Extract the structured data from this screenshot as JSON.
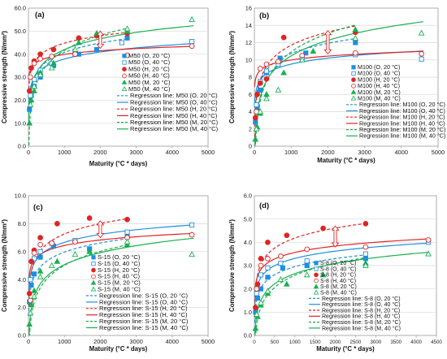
{
  "chart_data": [
    {
      "type": "scatter",
      "panel_label": "(a)",
      "xlabel": "Maturity (°C * days)",
      "ylabel": "Compressive strength (N/mm²)",
      "xlim": [
        0,
        5000
      ],
      "ylim": [
        0,
        60
      ],
      "xticks": [
        "0",
        "1000",
        "2000",
        "3000",
        "4000",
        "5000"
      ],
      "yticks": [
        "0.0",
        "10.0",
        "20.0",
        "30.0",
        "40.0",
        "50.0",
        "60.0"
      ],
      "grid": true,
      "legend_position": "right",
      "colors": {
        "O": "#1e8fe0",
        "H": "#e02424",
        "M": "#18b050"
      },
      "series": [
        {
          "name": "M50 (O, 20 °C)",
          "color": "#1e8fe0",
          "marker": "square",
          "filled": true,
          "x": [
            28,
            80,
            160,
            330,
            700,
            1400,
            1900,
            2750
          ],
          "y": [
            16,
            22,
            26,
            30,
            35,
            40,
            42,
            47
          ]
        },
        {
          "name": "M50 (O, 40 °C)",
          "color": "#1e8fe0",
          "marker": "square",
          "filled": false,
          "x": [
            55,
            160,
            330,
            650,
            1300,
            2600,
            4550
          ],
          "y": [
            22,
            29,
            33,
            36,
            40,
            45,
            45.5
          ]
        },
        {
          "name": "M50 (H, 20 °C)",
          "color": "#e02424",
          "marker": "circle",
          "filled": true,
          "x": [
            28,
            80,
            160,
            330,
            700,
            1400,
            1900,
            2750
          ],
          "y": [
            24,
            34,
            37,
            40,
            42,
            47,
            48,
            49
          ]
        },
        {
          "name": "M50 (H, 40 °C)",
          "color": "#e02424",
          "marker": "circle",
          "filled": false,
          "x": [
            55,
            160,
            330,
            650,
            1300,
            2750,
            4550
          ],
          "y": [
            30,
            36,
            38,
            39,
            40,
            39.5,
            43.5
          ]
        },
        {
          "name": "M50 (M, 20 °C)",
          "color": "#18b050",
          "marker": "triangle",
          "filled": true,
          "x": [
            28,
            80,
            160,
            330,
            700,
            1400,
            1900,
            2750
          ],
          "y": [
            10,
            20,
            24,
            32,
            36,
            45,
            49,
            50
          ]
        },
        {
          "name": "M50 (M, 40 °C)",
          "color": "#18b050",
          "marker": "triangle",
          "filled": false,
          "x": [
            55,
            160,
            330,
            650,
            1300,
            2750,
            4550
          ],
          "y": [
            18,
            26,
            31,
            34,
            42,
            51,
            55
          ]
        }
      ],
      "regression_lines": [
        {
          "name": "Regression line: M50 (O, 20 °C)",
          "color": "#1e8fe0",
          "dash": true,
          "a": 0.0,
          "b": 5.9,
          "x_end": 2750
        },
        {
          "name": "Regression line: M50 (O, 40 °C)",
          "color": "#1e8fe0",
          "dash": false,
          "a": 7.5,
          "b": 4.4,
          "x_end": 4600
        },
        {
          "name": "Regression line: M50 (H, 20 °C)",
          "color": "#e02424",
          "dash": true,
          "a": 13.0,
          "b": 4.6,
          "x_end": 2750
        },
        {
          "name": "Regression line: M50 (H, 40 °C)",
          "color": "#e02424",
          "dash": false,
          "a": 24.0,
          "b": 2.3,
          "x_end": 4600
        },
        {
          "name": "Regression line: M50 (M, 20 °C)",
          "color": "#18b050",
          "dash": true,
          "a": -24.0,
          "b": 9.5,
          "x_end": 2750
        },
        {
          "name": "Regression line: M50 (M, 40 °C)",
          "color": "#18b050",
          "dash": false,
          "a": -5.0,
          "b": 6.8,
          "x_end": 4600
        }
      ],
      "annotation_arrow": {
        "x": 2000,
        "y_from": 42.5,
        "y_to": 50
      }
    },
    {
      "type": "scatter",
      "panel_label": "(b)",
      "xlabel": "Maturity (°C * days)",
      "ylabel": "Compressive strength (N/mm²)",
      "xlim": [
        0,
        5000
      ],
      "ylim": [
        0,
        16
      ],
      "xticks": [
        "0",
        "1000",
        "2000",
        "3000",
        "4000",
        "5000"
      ],
      "yticks": [
        "0",
        "2",
        "4",
        "6",
        "8",
        "10",
        "12",
        "14",
        "16"
      ],
      "grid": true,
      "legend_position": "right",
      "colors": {
        "O": "#1e8fe0",
        "H": "#e02424",
        "M": "#18b050"
      },
      "series": [
        {
          "name": "M100 (O, 20 °C)",
          "color": "#1e8fe0",
          "marker": "square",
          "filled": true,
          "x": [
            28,
            80,
            160,
            330,
            700,
            1400,
            2750
          ],
          "y": [
            2.8,
            4.5,
            6.5,
            8.5,
            10.2,
            10.8,
            12.0
          ]
        },
        {
          "name": "M100 (O, 40 °C)",
          "color": "#1e8fe0",
          "marker": "square",
          "filled": false,
          "x": [
            55,
            160,
            330,
            650,
            1300,
            2750,
            4550
          ],
          "y": [
            4.8,
            7.5,
            8.7,
            9.5,
            10.2,
            10.6,
            10.1
          ]
        },
        {
          "name": "M100 (H, 20 °C)",
          "color": "#e02424",
          "marker": "circle",
          "filled": true,
          "x": [
            28,
            80,
            160,
            330,
            800,
            2750
          ],
          "y": [
            3.3,
            6.0,
            7.3,
            7.8,
            12.6,
            13.2
          ]
        },
        {
          "name": "M100 (H, 40 °C)",
          "color": "#e02424",
          "marker": "circle",
          "filled": false,
          "x": [
            55,
            160,
            330,
            650,
            1300,
            2750,
            4550
          ],
          "y": [
            4.0,
            9.0,
            9.5,
            9.8,
            10.5,
            10.8,
            10.7
          ]
        },
        {
          "name": "M100 (M, 20 °C)",
          "color": "#18b050",
          "marker": "triangle",
          "filled": true,
          "x": [
            28,
            80,
            160,
            330,
            800,
            1600,
            2750
          ],
          "y": [
            0.8,
            2.2,
            3.8,
            6.0,
            8.5,
            11.0,
            13.5
          ]
        },
        {
          "name": "M100 (M, 40 °C)",
          "color": "#18b050",
          "marker": "triangle",
          "filled": false,
          "x": [
            55,
            160,
            330,
            650,
            1300,
            2750,
            4550
          ],
          "y": [
            2.0,
            4.0,
            5.5,
            6.5,
            10.0,
            12.5,
            13.1
          ]
        }
      ],
      "regression_lines": [
        {
          "name": "Regression line: M100 (O, 20 °C)",
          "color": "#1e8fe0",
          "dash": true,
          "a": -1.0,
          "b": 1.7,
          "x_end": 2750
        },
        {
          "name": "Regression line: M100 (O, 40 °C)",
          "color": "#1e8fe0",
          "dash": false,
          "a": 2.6,
          "b": 1.0,
          "x_end": 4600
        },
        {
          "name": "Regression line: M100 (H, 20 °C)",
          "color": "#e02424",
          "dash": true,
          "a": -3.5,
          "b": 2.2,
          "x_end": 2750
        },
        {
          "name": "Regression line: M100 (H, 40 °C)",
          "color": "#e02424",
          "dash": false,
          "a": 5.5,
          "b": 0.65,
          "x_end": 4600
        },
        {
          "name": "Regression line: M100 (M, 20 °C)",
          "color": "#18b050",
          "dash": true,
          "a": -10.5,
          "b": 3.1,
          "x_end": 2750
        },
        {
          "name": "Regression line: M100 (M, 40 °C)",
          "color": "#18b050",
          "dash": false,
          "a": -7.5,
          "b": 2.6,
          "x_end": 4600
        }
      ],
      "annotation_arrow": {
        "x": 2000,
        "y_from": 10.7,
        "y_to": 13.4
      }
    },
    {
      "type": "scatter",
      "panel_label": "(c)",
      "xlabel": "Maturity (°C * days)",
      "ylabel": "Compressive strength (N/mm²)",
      "xlim": [
        0,
        5000
      ],
      "ylim": [
        0,
        10
      ],
      "xticks": [
        "0",
        "1000",
        "2000",
        "3000",
        "4000",
        "5000"
      ],
      "yticks": [
        "0.0",
        "2.0",
        "4.0",
        "6.0",
        "8.0",
        "10.0"
      ],
      "grid": true,
      "legend_position": "bottom",
      "colors": {
        "O": "#1e8fe0",
        "H": "#e02424",
        "M": "#18b050"
      },
      "series": [
        {
          "name": "S-15 (O, 20 °C)",
          "color": "#1e8fe0",
          "marker": "square",
          "filled": true,
          "x": [
            28,
            80,
            160,
            330,
            700,
            1700,
            2750
          ],
          "y": [
            2.4,
            3.6,
            4.4,
            5.6,
            6.4,
            6.2,
            7.2
          ]
        },
        {
          "name": "S-15 (O, 40 °C)",
          "color": "#1e8fe0",
          "marker": "square",
          "filled": false,
          "x": [
            55,
            160,
            330,
            650,
            1300,
            2750,
            4550
          ],
          "y": [
            4.0,
            5.5,
            6.0,
            6.6,
            6.8,
            7.4,
            7.9
          ]
        },
        {
          "name": "S-15 (H, 20 °C)",
          "color": "#e02424",
          "marker": "circle",
          "filled": true,
          "x": [
            28,
            80,
            160,
            330,
            800,
            1700,
            2750
          ],
          "y": [
            3.0,
            5.3,
            6.1,
            7.0,
            8.0,
            8.4,
            8.3
          ]
        },
        {
          "name": "S-15 (H, 40 °C)",
          "color": "#e02424",
          "marker": "circle",
          "filled": false,
          "x": [
            55,
            160,
            330,
            650,
            1300,
            2750,
            4550
          ],
          "y": [
            2.5,
            5.9,
            6.5,
            6.6,
            6.7,
            7.0,
            7.2
          ]
        },
        {
          "name": "S-15 (M, 20 °C)",
          "color": "#18b050",
          "marker": "triangle",
          "filled": true,
          "x": [
            28,
            80,
            160,
            330,
            800,
            1700,
            2750
          ],
          "y": [
            0.8,
            2.2,
            3.2,
            4.6,
            5.3,
            6.0,
            6.5
          ]
        },
        {
          "name": "S-15 (M, 40 °C)",
          "color": "#18b050",
          "marker": "triangle",
          "filled": false,
          "x": [
            55,
            160,
            330,
            650,
            1300,
            2750,
            4550
          ],
          "y": [
            1.6,
            2.8,
            4.2,
            5.0,
            5.8,
            6.7,
            5.8
          ]
        }
      ],
      "regression_lines": [
        {
          "name": "Regression line: S-15 (O, 20 °C)",
          "color": "#1e8fe0",
          "dash": true,
          "a": -0.6,
          "b": 0.95,
          "x_end": 2750
        },
        {
          "name": "Regression line: S-15 (O, 40 °C)",
          "color": "#1e8fe0",
          "dash": false,
          "a": 1.0,
          "b": 0.82,
          "x_end": 4600
        },
        {
          "name": "Regression line: S-15 (H, 20 °C)",
          "color": "#e02424",
          "dash": true,
          "a": -0.2,
          "b": 1.08,
          "x_end": 2750
        },
        {
          "name": "Regression line: S-15 (H, 40 °C)",
          "color": "#e02424",
          "dash": false,
          "a": 2.5,
          "b": 0.57,
          "x_end": 4600
        },
        {
          "name": "Regression line: S-15 (M, 20 °C)",
          "color": "#18b050",
          "dash": true,
          "a": -5.0,
          "b": 1.45,
          "x_end": 2750
        },
        {
          "name": "Regression line: S-15 (M, 40 °C)",
          "color": "#18b050",
          "dash": false,
          "a": -3.5,
          "b": 1.24,
          "x_end": 4600
        }
      ],
      "annotation_arrow": {
        "x": 2000,
        "y_from": 7.0,
        "y_to": 8.2
      }
    },
    {
      "type": "scatter",
      "panel_label": "(d)",
      "xlabel": "Maturity (°C * days)",
      "ylabel": "Compressive strength (N/mm²)",
      "xlim": [
        0,
        4500
      ],
      "ylim": [
        0,
        6
      ],
      "xticks": [
        "0",
        "500",
        "1000",
        "1500",
        "2000",
        "2500",
        "3000",
        "3500",
        "4000",
        "4500"
      ],
      "yticks": [
        "0.0",
        "1.0",
        "2.0",
        "3.0",
        "4.0",
        "5.0",
        "6.0"
      ],
      "grid": true,
      "legend_position": "bottom",
      "colors": {
        "O": "#1e8fe0",
        "H": "#e02424",
        "M": "#18b050"
      },
      "series": [
        {
          "name": "S-8 (O, 20 °C)",
          "color": "#1e8fe0",
          "marker": "square",
          "filled": true,
          "x": [
            28,
            80,
            160,
            330,
            700,
            1300,
            2750
          ],
          "y": [
            1.0,
            1.6,
            2.0,
            2.5,
            2.9,
            3.0,
            3.3
          ]
        },
        {
          "name": "S-8 (O, 40 °C)",
          "color": "#1e8fe0",
          "marker": "square",
          "filled": false,
          "x": [
            55,
            160,
            330,
            650,
            1300,
            2750,
            4300
          ],
          "y": [
            1.8,
            2.6,
            2.9,
            3.1,
            3.2,
            3.5,
            4.0
          ]
        },
        {
          "name": "S-8 (H, 20 °C)",
          "color": "#e02424",
          "marker": "circle",
          "filled": true,
          "x": [
            28,
            80,
            160,
            330,
            800,
            1700,
            2750
          ],
          "y": [
            1.2,
            2.2,
            3.3,
            4.0,
            4.3,
            4.6,
            4.8
          ]
        },
        {
          "name": "S-8 (H, 40 °C)",
          "color": "#e02424",
          "marker": "circle",
          "filled": false,
          "x": [
            55,
            160,
            330,
            650,
            1300,
            2750,
            4300
          ],
          "y": [
            2.0,
            3.0,
            3.3,
            3.4,
            3.7,
            3.8,
            4.1
          ]
        },
        {
          "name": "S-8 (M, 20 °C)",
          "color": "#18b050",
          "marker": "triangle",
          "filled": true,
          "x": [
            28,
            80,
            160,
            330,
            800,
            1700,
            2750
          ],
          "y": [
            0.3,
            0.8,
            1.3,
            1.8,
            2.2,
            2.6,
            3.1
          ]
        },
        {
          "name": "S-8 (M, 40 °C)",
          "color": "#18b050",
          "marker": "triangle",
          "filled": false,
          "x": [
            55,
            160,
            330,
            650,
            1300,
            2750,
            4300
          ],
          "y": [
            0.9,
            1.4,
            1.9,
            2.4,
            2.6,
            3.0,
            3.5
          ]
        }
      ],
      "regression_lines": [
        {
          "name": "Regression line: S-8 (O, 20 °C)",
          "color": "#1e8fe0",
          "dash": true,
          "a": -0.5,
          "b": 0.5,
          "x_end": 2750
        },
        {
          "name": "Regression line: S-8 (O, 40 °C)",
          "color": "#1e8fe0",
          "dash": false,
          "a": 0.2,
          "b": 0.45,
          "x_end": 4300
        },
        {
          "name": "Regression line: S-8 (H, 20 °C)",
          "color": "#e02424",
          "dash": true,
          "a": -0.1,
          "b": 0.62,
          "x_end": 2750
        },
        {
          "name": "Regression line: S-8 (H, 40 °C)",
          "color": "#e02424",
          "dash": false,
          "a": 0.8,
          "b": 0.4,
          "x_end": 4300
        },
        {
          "name": "Regression line: S-8 (M, 20 °C)",
          "color": "#18b050",
          "dash": true,
          "a": -2.6,
          "b": 0.75,
          "x_end": 2750
        },
        {
          "name": "Regression line: S-8 (M, 40 °C)",
          "color": "#18b050",
          "dash": false,
          "a": -1.7,
          "b": 0.63,
          "x_end": 4300
        }
      ],
      "annotation_arrow": {
        "x": 2000,
        "y_from": 3.8,
        "y_to": 4.7
      }
    }
  ]
}
